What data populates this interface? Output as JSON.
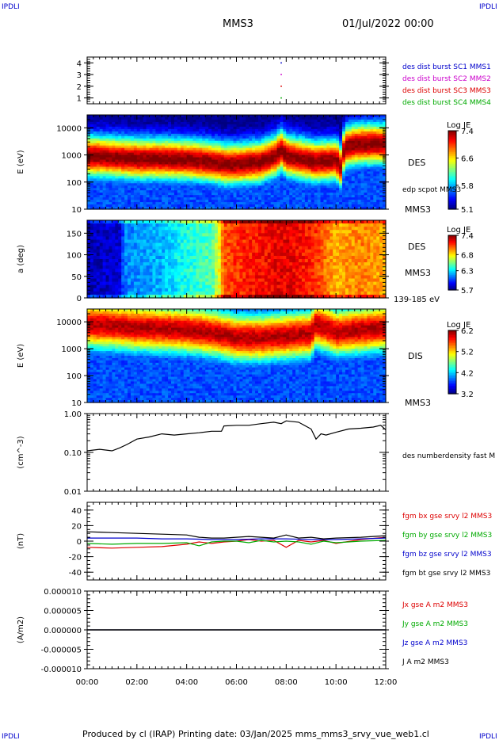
{
  "corner_mark": "IPDLI",
  "header": {
    "spacecraft": "MMS3",
    "date": "01/Jul/2022 00:00"
  },
  "footer": "Produced by cl (IRAP)   Printing date: 03/Jan/2025   mms_mms3_srvy_vue_web1.cl",
  "time_axis": {
    "ticks": [
      "00:00",
      "02:00",
      "04:00",
      "06:00",
      "08:00",
      "10:00",
      "12:00"
    ],
    "range_hours": [
      0,
      12
    ]
  },
  "chart_data": [
    {
      "type": "scatter",
      "panel": "burst",
      "ylim": [
        0.5,
        4.5
      ],
      "y_ticks": [
        "1",
        "2",
        "3",
        "4"
      ],
      "labels": [
        {
          "text": "des dist burst SC1 MMS1",
          "color": "#0000cc"
        },
        {
          "text": "des dist burst SC2 MMS2",
          "color": "#cc00cc"
        },
        {
          "text": "des dist burst SC3 MMS3",
          "color": "#dd0000"
        },
        {
          "text": "des dist burst SC4 MMS4",
          "color": "#00aa00"
        }
      ],
      "points": [
        {
          "x": 7.8,
          "y": 4,
          "color": "#0000cc"
        },
        {
          "x": 7.8,
          "y": 3,
          "color": "#cc00cc"
        },
        {
          "x": 7.8,
          "y": 2,
          "color": "#dd0000"
        },
        {
          "x": 7.8,
          "y": 1,
          "color": "#00aa00"
        }
      ]
    },
    {
      "type": "heatmap",
      "panel": "des_energy",
      "ylabel": "E (eV)",
      "yscale": "log",
      "ylim": [
        10,
        30000
      ],
      "y_ticks": [
        "10",
        "100",
        "1000",
        "10000"
      ],
      "side_labels": [
        "DES",
        "edp scpot MMS3",
        "MMS3"
      ],
      "colorbar": {
        "title": "Log JE",
        "ticks": [
          "7.4",
          "6.6",
          "5.8",
          "5.1"
        ],
        "range": [
          5.1,
          7.4
        ]
      },
      "peak_energy_profile": [
        [
          0,
          900
        ],
        [
          1,
          800
        ],
        [
          2,
          700
        ],
        [
          3,
          700
        ],
        [
          4,
          650
        ],
        [
          5,
          550
        ],
        [
          5.5,
          450
        ],
        [
          6,
          450
        ],
        [
          7,
          550
        ],
        [
          7.6,
          900
        ],
        [
          7.8,
          1500
        ],
        [
          8,
          900
        ],
        [
          8.6,
          700
        ],
        [
          9.2,
          550
        ],
        [
          10,
          650
        ],
        [
          10.2,
          350
        ],
        [
          10.4,
          2000
        ],
        [
          11,
          2500
        ],
        [
          12,
          2500
        ]
      ]
    },
    {
      "type": "heatmap",
      "panel": "des_pitch",
      "ylabel": "a (deg)",
      "ylim": [
        0,
        180
      ],
      "y_ticks": [
        "0",
        "50",
        "100",
        "150"
      ],
      "side_labels": [
        "DES",
        "MMS3",
        "139-185 eV"
      ],
      "colorbar": {
        "title": "Log JE",
        "ticks": [
          "7.4",
          "6.8",
          "6.3",
          "5.7"
        ],
        "range": [
          5.7,
          7.4
        ]
      },
      "mean_level_profile": [
        [
          0,
          0.05
        ],
        [
          1.3,
          0.08
        ],
        [
          1.5,
          0.25
        ],
        [
          3,
          0.3
        ],
        [
          4,
          0.4
        ],
        [
          5,
          0.45
        ],
        [
          5.3,
          0.6
        ],
        [
          5.5,
          0.8
        ],
        [
          6.5,
          0.85
        ],
        [
          8,
          0.9
        ],
        [
          9,
          0.85
        ],
        [
          10,
          0.7
        ],
        [
          11,
          0.75
        ],
        [
          12,
          0.7
        ]
      ]
    },
    {
      "type": "heatmap",
      "panel": "dis_energy",
      "ylabel": "E (eV)",
      "yscale": "log",
      "ylim": [
        10,
        30000
      ],
      "y_ticks": [
        "10",
        "100",
        "1000",
        "10000"
      ],
      "side_labels": [
        "DIS",
        "MMS3"
      ],
      "colorbar": {
        "title": "Log JE",
        "ticks": [
          "6.2",
          "5.2",
          "4.2",
          "3.2"
        ],
        "range": [
          3.2,
          6.2
        ]
      },
      "peak_energy_profile": [
        [
          0,
          8000
        ],
        [
          2,
          6000
        ],
        [
          4,
          5000
        ],
        [
          5.3,
          3500
        ],
        [
          6,
          2500
        ],
        [
          7,
          2500
        ],
        [
          8,
          3000
        ],
        [
          9,
          3500
        ],
        [
          9.2,
          8000
        ],
        [
          10,
          4000
        ],
        [
          11,
          5000
        ],
        [
          12,
          6000
        ]
      ]
    },
    {
      "type": "line",
      "panel": "density",
      "ylabel": "(cm^-3)",
      "yscale": "log",
      "ylim": [
        0.01,
        1.0
      ],
      "y_ticks": [
        "0.01",
        "0.10",
        "1.00"
      ],
      "series": [
        {
          "name": "des numberdensity fast M",
          "color": "#000000",
          "x": [
            0,
            0.5,
            1,
            1.3,
            1.6,
            2,
            2.5,
            3,
            3.5,
            4,
            4.5,
            5,
            5.4,
            5.5,
            6,
            6.5,
            7,
            7.5,
            7.8,
            8,
            8.5,
            9,
            9.2,
            9.4,
            9.6,
            10,
            10.5,
            11,
            11.5,
            11.8,
            12
          ],
          "y": [
            0.11,
            0.12,
            0.11,
            0.13,
            0.16,
            0.22,
            0.25,
            0.3,
            0.28,
            0.3,
            0.32,
            0.35,
            0.35,
            0.48,
            0.5,
            0.5,
            0.55,
            0.6,
            0.55,
            0.65,
            0.6,
            0.4,
            0.22,
            0.3,
            0.28,
            0.33,
            0.4,
            0.42,
            0.45,
            0.5,
            0.38
          ]
        }
      ]
    },
    {
      "type": "line",
      "panel": "magnetic_field",
      "ylabel": "(nT)",
      "ylim": [
        -50,
        50
      ],
      "y_ticks": [
        "-40",
        "-20",
        "0",
        "20",
        "40"
      ],
      "series": [
        {
          "name": "fgm bx gse srvy l2 MMS3",
          "color": "#dd0000",
          "x": [
            0,
            1,
            2,
            3,
            4,
            4.5,
            5,
            5.5,
            6,
            6.5,
            7,
            7.5,
            8,
            8.5,
            9,
            9.5,
            10,
            11,
            12
          ],
          "y": [
            -8,
            -9,
            -8,
            -7,
            -4,
            -1,
            -3,
            -1,
            0,
            2,
            0,
            1,
            -8,
            1,
            -1,
            1,
            -3,
            2,
            5
          ]
        },
        {
          "name": "fgm by gse srvy l2 MMS3",
          "color": "#00aa00",
          "x": [
            0,
            1,
            2,
            3,
            4,
            4.5,
            5,
            5.5,
            6,
            6.5,
            7,
            7.5,
            8,
            8.5,
            9,
            9.5,
            10,
            11,
            12
          ],
          "y": [
            -3,
            -4,
            -3,
            -3,
            -2,
            -6,
            -1,
            0,
            0,
            -2,
            1,
            -1,
            0,
            -1,
            -4,
            0,
            -2,
            0,
            1
          ]
        },
        {
          "name": "fgm bz gse srvy l2 MMS3",
          "color": "#0000cc",
          "x": [
            0,
            1,
            2,
            3,
            4,
            5,
            6,
            7,
            8,
            9,
            10,
            11,
            12
          ],
          "y": [
            4,
            4,
            4,
            3,
            3,
            2,
            2,
            3,
            3,
            2,
            2,
            3,
            4
          ]
        },
        {
          "name": "fgm bt gse srvy l2 MMS3",
          "color": "#000000",
          "x": [
            0,
            1,
            2,
            3,
            4,
            4.5,
            5,
            5.5,
            6,
            6.5,
            7,
            7.5,
            8,
            8.5,
            9,
            9.5,
            10,
            11,
            12
          ],
          "y": [
            12,
            11,
            10,
            9,
            8,
            5,
            4,
            4,
            5,
            6,
            5,
            4,
            8,
            4,
            5,
            3,
            4,
            5,
            7
          ]
        }
      ]
    },
    {
      "type": "line",
      "panel": "current",
      "ylabel": "(A/m2)",
      "ylim": [
        -1e-05,
        1e-05
      ],
      "y_ticks": [
        "-0.000010",
        "-0.000005",
        "0.000000",
        "0.000005",
        "0.000010"
      ],
      "series": [
        {
          "name": "Jx gse A m2 MMS3",
          "color": "#dd0000",
          "x": [
            0,
            12
          ],
          "y": [
            0,
            0
          ]
        },
        {
          "name": "Jy gse A m2 MMS3",
          "color": "#00aa00",
          "x": [
            0,
            12
          ],
          "y": [
            0,
            0
          ]
        },
        {
          "name": "Jz gse A m2 MMS3",
          "color": "#0000cc",
          "x": [
            0,
            12
          ],
          "y": [
            0,
            0
          ]
        },
        {
          "name": "J A m2 MMS3",
          "color": "#000000",
          "x": [
            0,
            12
          ],
          "y": [
            0,
            0
          ]
        }
      ]
    }
  ]
}
